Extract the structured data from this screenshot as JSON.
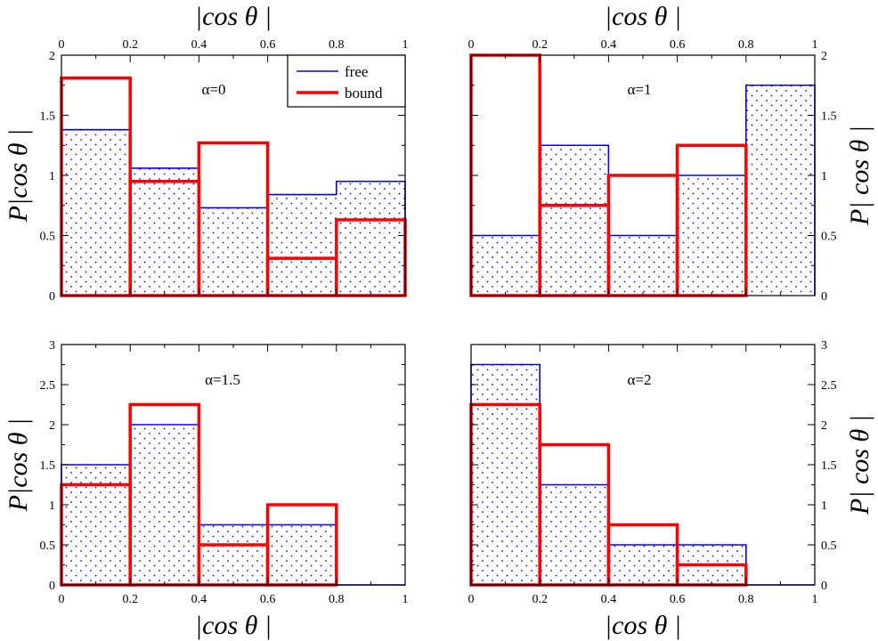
{
  "figure": {
    "top_xlabel": "|cos θ |",
    "bottom_xlabel": "|cos θ |",
    "ylabel_left": "P|cos θ |",
    "ylabel_right": "P| cos θ |"
  },
  "legend": {
    "free_label": "free",
    "bound_label": "bound"
  },
  "colors": {
    "free": "#0000ff",
    "bound": "#ff0000",
    "axis": "#000000"
  },
  "chart_data": [
    {
      "type": "bar",
      "panel": "top-left",
      "label": "α=0",
      "bin_edges": [
        0,
        0.2,
        0.4,
        0.6,
        0.8,
        1
      ],
      "xlim": [
        0,
        1
      ],
      "ylim": [
        0,
        2
      ],
      "x_ticks": [
        0,
        0.2,
        0.4,
        0.6,
        0.8,
        1
      ],
      "x_tick_labels": [
        "0",
        "0.2",
        "0.4",
        "0.6",
        "0.8",
        "1"
      ],
      "y_ticks": [
        0,
        0.5,
        1,
        1.5,
        2
      ],
      "y_tick_labels": [
        "0",
        "0.5",
        "1",
        "1.5",
        "2"
      ],
      "series": [
        {
          "name": "free",
          "values": [
            1.38,
            1.06,
            0.73,
            0.84,
            0.95
          ]
        },
        {
          "name": "bound",
          "values": [
            1.81,
            0.95,
            1.27,
            0.31,
            0.63
          ]
        }
      ]
    },
    {
      "type": "bar",
      "panel": "top-right",
      "label": "α=1",
      "bin_edges": [
        0,
        0.2,
        0.4,
        0.6,
        0.8,
        1
      ],
      "xlim": [
        0,
        1
      ],
      "ylim": [
        0,
        2
      ],
      "x_ticks": [
        0,
        0.2,
        0.4,
        0.6,
        0.8,
        1
      ],
      "x_tick_labels": [
        "0",
        "0.2",
        "0.4",
        "0.6",
        "0.8",
        "1"
      ],
      "y_ticks": [
        0,
        0.5,
        1,
        1.5,
        2
      ],
      "y_tick_labels": [
        "0",
        "0.5",
        "1",
        "1.5",
        "2"
      ],
      "series": [
        {
          "name": "free",
          "values": [
            0.5,
            1.25,
            0.5,
            1.0,
            1.75
          ]
        },
        {
          "name": "bound",
          "values": [
            2.0,
            0.75,
            1.0,
            1.25,
            0.0
          ]
        }
      ]
    },
    {
      "type": "bar",
      "panel": "bottom-left",
      "label": "α=1.5",
      "bin_edges": [
        0,
        0.2,
        0.4,
        0.6,
        0.8,
        1
      ],
      "xlim": [
        0,
        1
      ],
      "ylim": [
        0,
        3
      ],
      "x_ticks": [
        0,
        0.2,
        0.4,
        0.6,
        0.8,
        1
      ],
      "x_tick_labels": [
        "0",
        "0.2",
        "0.4",
        "0.6",
        "0.8",
        "1"
      ],
      "y_ticks": [
        0,
        0.5,
        1,
        1.5,
        2,
        2.5,
        3
      ],
      "y_tick_labels": [
        "0",
        "0.5",
        "1",
        "1.5",
        "2",
        "2.5",
        "3"
      ],
      "series": [
        {
          "name": "free",
          "values": [
            1.5,
            2.0,
            0.75,
            0.75,
            0.0
          ]
        },
        {
          "name": "bound",
          "values": [
            1.25,
            2.25,
            0.5,
            1.0,
            0.0
          ]
        }
      ]
    },
    {
      "type": "bar",
      "panel": "bottom-right",
      "label": "α=2",
      "bin_edges": [
        0,
        0.2,
        0.4,
        0.6,
        0.8,
        1
      ],
      "xlim": [
        0,
        1
      ],
      "ylim": [
        0,
        3
      ],
      "x_ticks": [
        0,
        0.2,
        0.4,
        0.6,
        0.8,
        1
      ],
      "x_tick_labels": [
        "0",
        "0.2",
        "0.4",
        "0.6",
        "0.8",
        "1"
      ],
      "y_ticks": [
        0,
        0.5,
        1,
        1.5,
        2,
        2.5,
        3
      ],
      "y_tick_labels": [
        "0",
        "0.5",
        "1",
        "1.5",
        "2",
        "2.5",
        "3"
      ],
      "series": [
        {
          "name": "free",
          "values": [
            2.75,
            1.25,
            0.5,
            0.5,
            0.0
          ]
        },
        {
          "name": "bound",
          "values": [
            2.25,
            1.75,
            0.75,
            0.25,
            0.0
          ]
        }
      ]
    }
  ]
}
